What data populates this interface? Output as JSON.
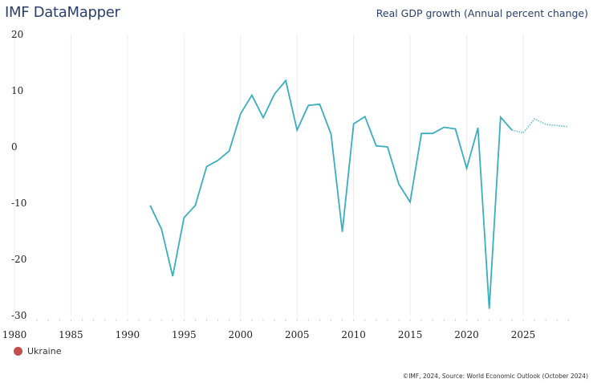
{
  "header": {
    "brand": "IMF DataMapper",
    "indicator_title": "Real GDP growth (Annual percent change)"
  },
  "legend": {
    "items": [
      {
        "label": "Ukraine",
        "color": "#c0504d"
      }
    ]
  },
  "footer": {
    "credit": "©IMF, 2024, Source: World Economic Outlook (October 2024)"
  },
  "chart_data": {
    "type": "line",
    "title": "Real GDP growth (Annual percent change)",
    "xlabel": "",
    "ylabel": "",
    "xlim": [
      1980,
      2029
    ],
    "ylim": [
      -30,
      20
    ],
    "x_ticks": [
      "1980",
      "1985",
      "1990",
      "1995",
      "2000",
      "2005",
      "2010",
      "2015",
      "2020",
      "2025"
    ],
    "y_ticks": [
      "20",
      "10",
      "0",
      "-10",
      "-20",
      "-30"
    ],
    "grid": "vertical",
    "legend_position": "bottom-left",
    "line_color": "#3aaebf",
    "projection_start": 2024,
    "series": [
      {
        "name": "Ukraine",
        "x": [
          1992,
          1993,
          1994,
          1995,
          1996,
          1997,
          1998,
          1999,
          2000,
          2001,
          2002,
          2003,
          2004,
          2005,
          2006,
          2007,
          2008,
          2009,
          2010,
          2011,
          2012,
          2013,
          2014,
          2015,
          2016,
          2017,
          2018,
          2019,
          2020,
          2021,
          2022,
          2023,
          2024,
          2025,
          2026,
          2027,
          2028,
          2029
        ],
        "values": [
          -10.4,
          -14.6,
          -23.0,
          -12.6,
          -10.4,
          -3.5,
          -2.4,
          -0.7,
          5.9,
          9.2,
          5.2,
          9.4,
          11.8,
          3.0,
          7.4,
          7.6,
          2.3,
          -15.1,
          4.1,
          5.4,
          0.2,
          0.0,
          -6.6,
          -9.8,
          2.4,
          2.4,
          3.5,
          3.2,
          -3.8,
          3.4,
          -28.8,
          5.3,
          3.0,
          2.5,
          5.0,
          4.0,
          3.8,
          3.6
        ]
      }
    ]
  }
}
